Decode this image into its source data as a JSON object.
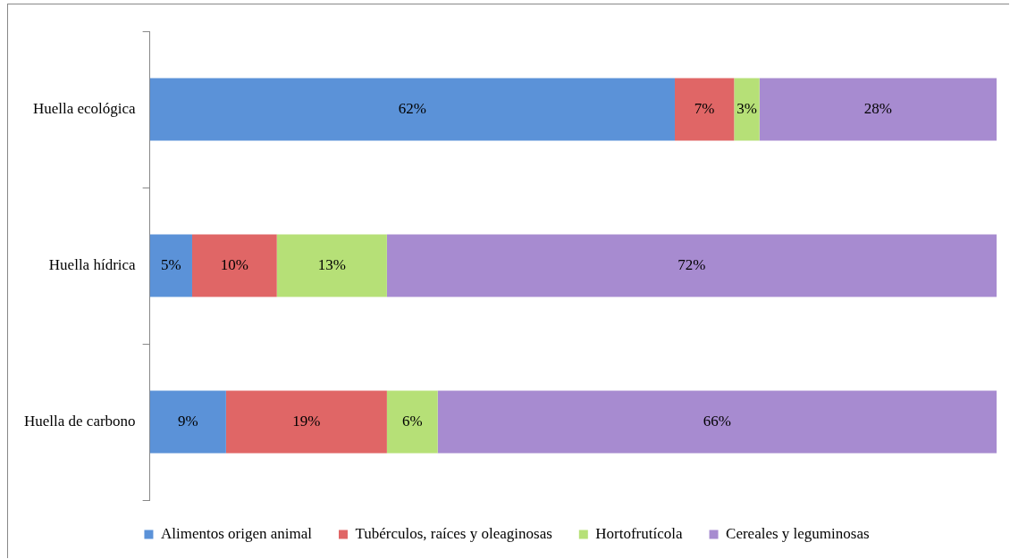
{
  "chart_data": {
    "type": "bar",
    "orientation": "horizontal",
    "stacked": true,
    "grid": false,
    "legend": "bottom",
    "tick_labels": "y",
    "categories": [
      "Huella ecológica",
      "Huella hídrica",
      "Huella de carbono"
    ],
    "series": [
      {
        "name": "Alimentos origen animal",
        "color": "#5b92d8",
        "values": [
          62,
          5,
          9
        ],
        "value_labels": [
          "62%",
          "5%",
          "9%"
        ]
      },
      {
        "name": "Tubérculos, raíces y oleaginosas",
        "color": "#e06666",
        "values": [
          7,
          10,
          19
        ],
        "value_labels": [
          "7%",
          "10%",
          "19%"
        ]
      },
      {
        "name": "Hortofrutícola",
        "color": "#b6e077",
        "values": [
          3,
          13,
          6
        ],
        "value_labels": [
          "3%",
          "13%",
          "6%"
        ]
      },
      {
        "name": "Cereales y leguminosas",
        "color": "#a78bd0",
        "values": [
          28,
          72,
          66
        ],
        "value_labels": [
          "28%",
          "72%",
          "66%"
        ]
      }
    ]
  }
}
